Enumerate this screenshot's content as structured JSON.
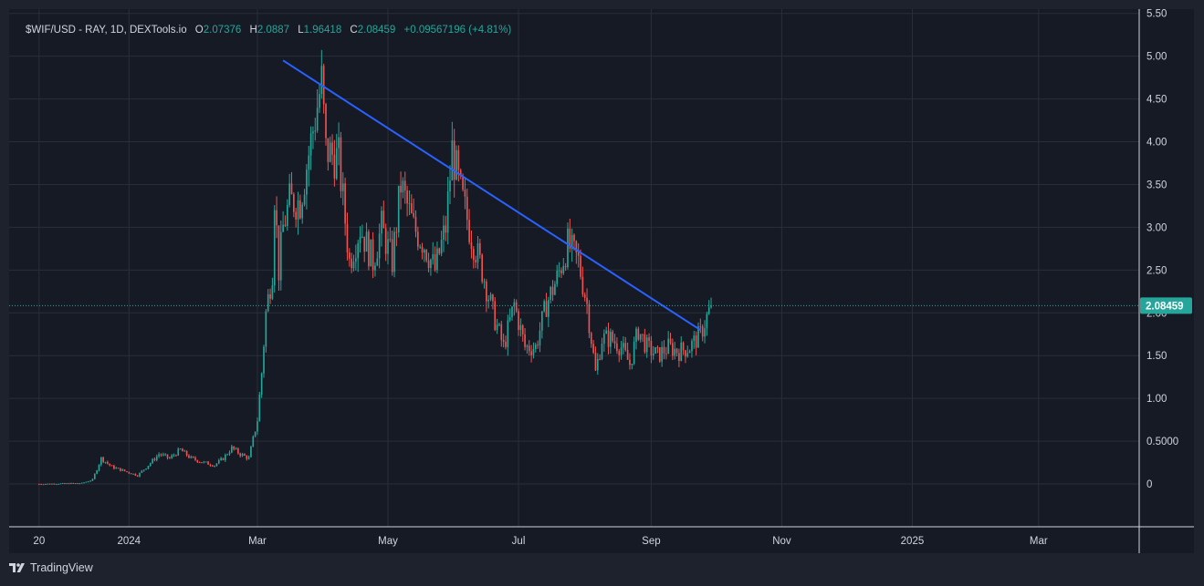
{
  "legend": {
    "symbol": "$WIF/USD - RAY, 1D, DEXTools.io",
    "o_label": "O",
    "o_value": "2.07376",
    "h_label": "H",
    "h_value": "2.0887",
    "l_label": "L",
    "l_value": "1.96418",
    "c_label": "C",
    "c_value": "2.08459",
    "change": "+0.09567196 (+4.81%)"
  },
  "footer": {
    "brand": "TradingView",
    "logo_icon": "tradingview-logo-icon"
  },
  "colors": {
    "up": "#26a69a",
    "down": "#ef5350",
    "trendline": "#2962ff",
    "price_tag": "#26a69a",
    "grid": "#2a2e39"
  },
  "chart_data": {
    "type": "candlestick",
    "title": "$WIF/USD - RAY, 1D, DEXTools.io",
    "x_tick_labels": [
      "20",
      "2024",
      "Mar",
      "May",
      "Jul",
      "Sep",
      "Nov",
      "2025",
      "Mar"
    ],
    "y_tick_labels": [
      "0",
      "0.5000",
      "1.00",
      "1.50",
      "2.00",
      "2.50",
      "3.00",
      "3.50",
      "4.00",
      "4.50",
      "5.00",
      "5.50"
    ],
    "ylim": [
      -0.5,
      5.55
    ],
    "xlim": [
      "2023-11-06",
      "2025-04-17"
    ],
    "grid": true,
    "last_price": {
      "value": 2.08459,
      "label": "2.08459"
    },
    "trendline": {
      "start": {
        "date": "2024-03-13",
        "value": 4.95
      },
      "end": {
        "date": "2024-09-24",
        "value": 1.8
      }
    },
    "close_path": [
      [
        "2023-11-20",
        0.0
      ],
      [
        "2023-12-10",
        0.01
      ],
      [
        "2023-12-15",
        0.05
      ],
      [
        "2023-12-19",
        0.3
      ],
      [
        "2023-12-24",
        0.2
      ],
      [
        "2023-12-30",
        0.15
      ],
      [
        "2024-01-05",
        0.1
      ],
      [
        "2024-01-10",
        0.22
      ],
      [
        "2024-01-15",
        0.35
      ],
      [
        "2024-01-20",
        0.3
      ],
      [
        "2024-01-25",
        0.4
      ],
      [
        "2024-01-30",
        0.3
      ],
      [
        "2024-02-05",
        0.25
      ],
      [
        "2024-02-10",
        0.22
      ],
      [
        "2024-02-14",
        0.3
      ],
      [
        "2024-02-18",
        0.42
      ],
      [
        "2024-02-22",
        0.35
      ],
      [
        "2024-02-26",
        0.3
      ],
      [
        "2024-03-01",
        0.75
      ],
      [
        "2024-03-03",
        1.3
      ],
      [
        "2024-03-05",
        2.0
      ],
      [
        "2024-03-08",
        2.5
      ],
      [
        "2024-03-09",
        3.4
      ],
      [
        "2024-03-11",
        2.5
      ],
      [
        "2024-03-13",
        3.0
      ],
      [
        "2024-03-16",
        3.3
      ],
      [
        "2024-03-21",
        3.3
      ],
      [
        "2024-03-31",
        4.7
      ],
      [
        "2024-04-02",
        3.9
      ],
      [
        "2024-04-08",
        3.8
      ],
      [
        "2024-04-13",
        2.6
      ],
      [
        "2024-04-18",
        3.0
      ],
      [
        "2024-04-24",
        2.6
      ],
      [
        "2024-04-28",
        3.0
      ],
      [
        "2024-05-03",
        2.6
      ],
      [
        "2024-05-07",
        3.5
      ],
      [
        "2024-05-13",
        3.0
      ],
      [
        "2024-05-18",
        2.8
      ],
      [
        "2024-05-23",
        2.5
      ],
      [
        "2024-05-28",
        3.0
      ],
      [
        "2024-05-31",
        3.9
      ],
      [
        "2024-06-04",
        3.4
      ],
      [
        "2024-06-09",
        2.9
      ],
      [
        "2024-06-14",
        2.5
      ],
      [
        "2024-06-19",
        2.0
      ],
      [
        "2024-06-24",
        1.6
      ],
      [
        "2024-06-29",
        2.1
      ],
      [
        "2024-07-04",
        1.6
      ],
      [
        "2024-07-09",
        1.6
      ],
      [
        "2024-07-14",
        2.1
      ],
      [
        "2024-07-19",
        2.4
      ],
      [
        "2024-07-24",
        2.8
      ],
      [
        "2024-07-29",
        2.6
      ],
      [
        "2024-08-02",
        2.1
      ],
      [
        "2024-08-06",
        1.3
      ],
      [
        "2024-08-09",
        1.7
      ],
      [
        "2024-08-13",
        1.7
      ],
      [
        "2024-08-18",
        1.6
      ],
      [
        "2024-08-22",
        1.4
      ],
      [
        "2024-08-26",
        1.8
      ],
      [
        "2024-08-30",
        1.6
      ],
      [
        "2024-09-04",
        1.5
      ],
      [
        "2024-09-09",
        1.6
      ],
      [
        "2024-09-14",
        1.55
      ],
      [
        "2024-09-19",
        1.6
      ],
      [
        "2024-09-24",
        1.75
      ],
      [
        "2024-09-29",
        2.08459
      ]
    ]
  }
}
